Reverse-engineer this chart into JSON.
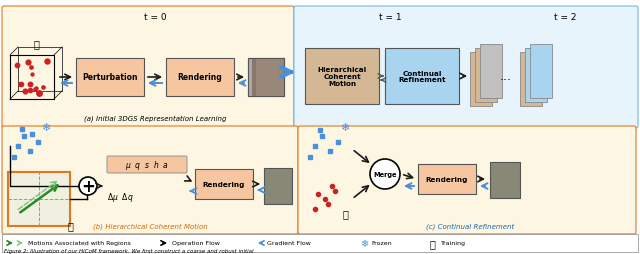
{
  "bg_color": "#ffffff",
  "top_panel_bg": "#fdf6e3",
  "right_top_panel_bg": "#e8f4fb",
  "box_peach": "#f5c6a0",
  "box_blue": "#a8d4f0",
  "box_tan": "#d4b896",
  "arrow_black": "#1a1a1a",
  "arrow_blue": "#4a90d9",
  "arrow_green": "#2a8a2a",
  "arrow_green_dashed": "#7dbf7d",
  "border_orange": "#e07820",
  "text_orange": "#d46a00",
  "text_blue": "#1a6aaa",
  "legend_border": "#888888",
  "figure_caption": "Figure 2: Illustration of our HiCoM framework. We first construct a coarse and robust initial",
  "title_a": "(a) Initial 3DGS Representation Learning",
  "title_b": "(b) Hierarchical Coherent Motion",
  "title_c": "(c) Continual Refinement",
  "t0_label": "t = 0",
  "t1_label": "t = 1",
  "t2_label": "t = 2",
  "legend_items": [
    "Motions Associated with Regions",
    "Operation Flow",
    "Gradient Flow",
    "Frozen",
    "Training"
  ]
}
